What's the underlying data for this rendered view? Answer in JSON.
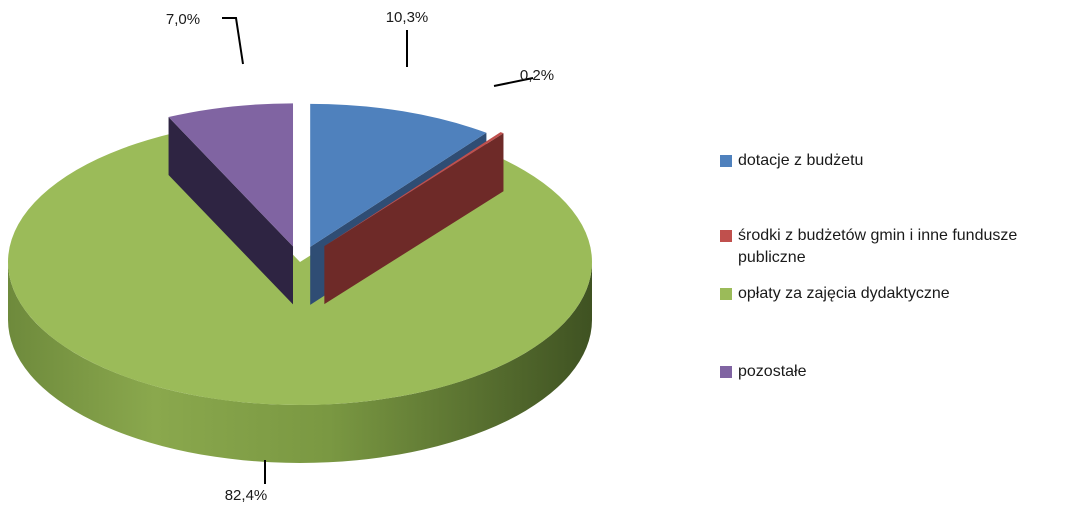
{
  "chart_data": {
    "type": "pie",
    "title": "",
    "categories": [
      "dotacje z budżetu",
      "środki z budżetów gmin i inne fundusze publiczne",
      "opłaty za zajęcia dydaktyczne",
      "pozostałe"
    ],
    "values": [
      10.3,
      0.2,
      82.4,
      7.0
    ],
    "data_labels": [
      "10,3%",
      "0,2%",
      "82,4%",
      "7,0%"
    ],
    "colors": [
      "#4F81BD",
      "#C0504D",
      "#9BBB59",
      "#8064A2"
    ],
    "style": "3d-exploded",
    "legend_position": "right"
  }
}
